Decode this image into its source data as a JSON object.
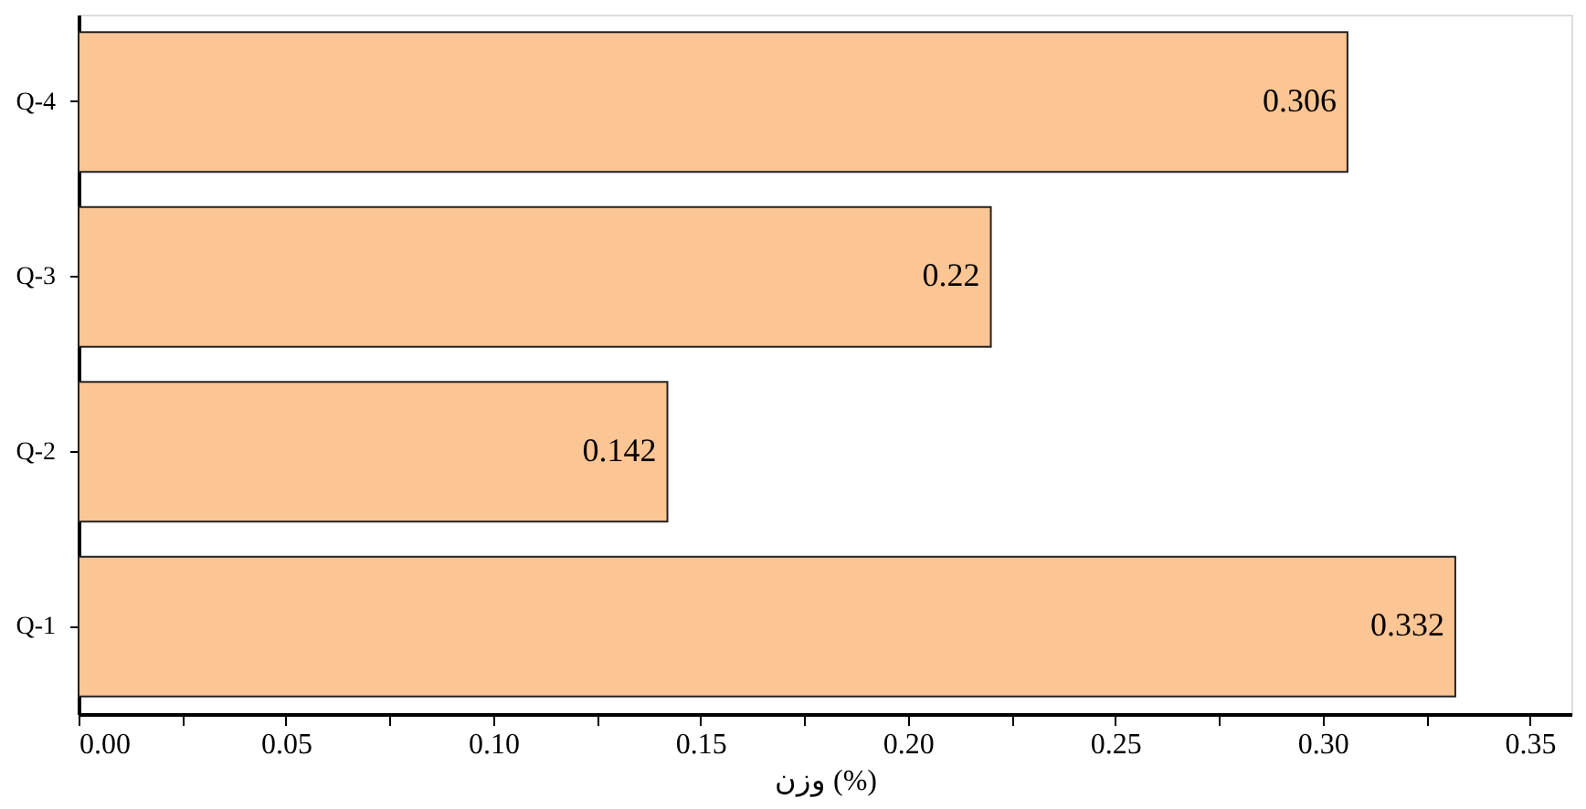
{
  "chart_data": {
    "type": "bar",
    "orientation": "horizontal",
    "xlabel": "وزن (%)",
    "categories": [
      "Q-4",
      "Q-3",
      "Q-2",
      "Q-1"
    ],
    "values": [
      0.306,
      0.22,
      0.142,
      0.332
    ],
    "color": "#fcc594",
    "data_labels": true,
    "xlim": [
      0,
      0.36
    ],
    "xticks": [
      {
        "value": 0,
        "label": "0.00"
      },
      {
        "value": 0.025,
        "label": null
      },
      0.05,
      {
        "value": 0.075,
        "label": null
      },
      {
        "value": 0.1,
        "label": "0.10"
      },
      {
        "value": 0.125,
        "label": null
      },
      0.15,
      {
        "value": 0.175,
        "label": null
      },
      {
        "value": 0.2,
        "label": "0.20"
      },
      {
        "value": 0.225,
        "label": null
      },
      0.25,
      {
        "value": 0.275,
        "label": null
      },
      {
        "value": 0.3,
        "label": "0.30"
      },
      {
        "value": 0.325,
        "label": null
      },
      0.35
    ],
    "grid": false
  }
}
